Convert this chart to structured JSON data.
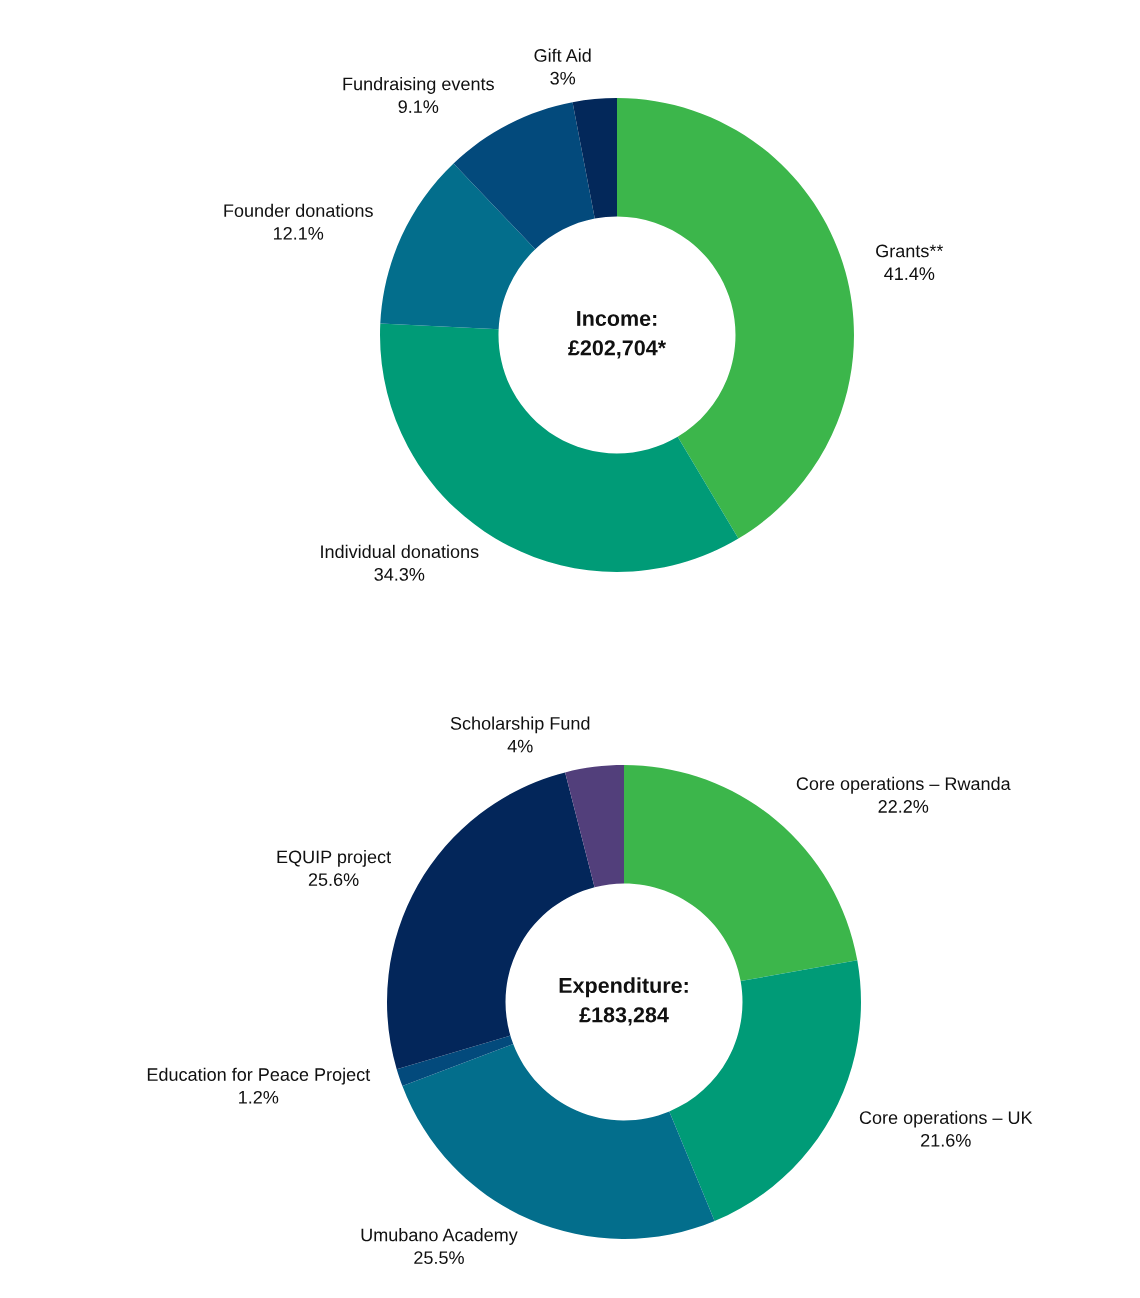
{
  "chart_data": [
    {
      "type": "donut",
      "title": "Income:\n£202,704*",
      "categories": [
        "Grants**",
        "Individual donations",
        "Founder donations",
        "Fundraising events",
        "Gift Aid"
      ],
      "values": [
        41.4,
        34.3,
        12.1,
        9.1,
        3
      ],
      "value_labels": [
        "41.4%",
        "34.3%",
        "12.1%",
        "9.1%",
        "3%"
      ],
      "colors": [
        "#3cb64b",
        "#009b77",
        "#036e8c",
        "#034a7c",
        "#03285a"
      ],
      "legend": false
    },
    {
      "type": "donut",
      "title": "Expenditure:\n£183,284",
      "categories": [
        "Core operations – Rwanda",
        "Core operations – UK",
        "Umubano Academy",
        "Education for Peace Project",
        "EQUIP project",
        "Scholarship Fund"
      ],
      "values": [
        22.2,
        21.6,
        25.5,
        1.2,
        25.6,
        4
      ],
      "value_labels": [
        "22.2%",
        "21.6%",
        "25.5%",
        "1.2%",
        "25.6%",
        "4%"
      ],
      "colors": [
        "#3cb64b",
        "#009b77",
        "#036e8c",
        "#034a7c",
        "#03265a",
        "#523f7b"
      ],
      "legend": false
    }
  ]
}
